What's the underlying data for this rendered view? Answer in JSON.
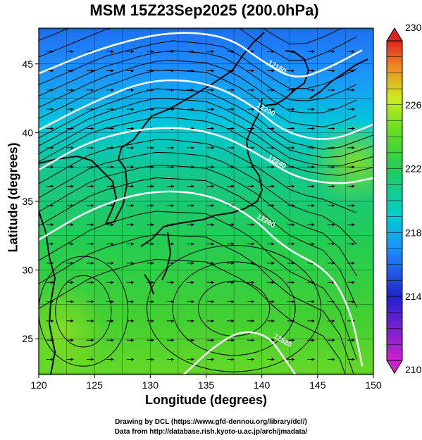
{
  "title": "MSM 15Z23Sep2025 (200.0hPa)",
  "chart_data": {
    "type": "heatmap",
    "xlabel": "Longitude (degrees)",
    "ylabel": "Latitude  (degrees)",
    "xlim": [
      120,
      150
    ],
    "ylim": [
      22.4,
      47.6
    ],
    "xticks": [
      "120",
      "125",
      "130",
      "135",
      "140",
      "145",
      "150"
    ],
    "yticks": [
      "25",
      "30",
      "35",
      "40",
      "45"
    ],
    "grid": true,
    "colorbar": {
      "min": 210,
      "max": 230,
      "ticks": [
        "210",
        "214",
        "218",
        "222",
        "226",
        "230"
      ],
      "placement": "right",
      "colors": [
        "#cc22cc",
        "#2222cc",
        "#1e90ff",
        "#00cfd0",
        "#22cc55",
        "#66dd22",
        "#ccee22",
        "#ee8822",
        "#dd2222"
      ]
    },
    "contours": [
      {
        "label": "12160",
        "points": [
          [
            120,
            44.3
          ],
          [
            126,
            46.3
          ],
          [
            132,
            47.4
          ],
          [
            137,
            47.0
          ],
          [
            140,
            45.2
          ],
          [
            143,
            43.8
          ],
          [
            146,
            44.7
          ],
          [
            149,
            46.0
          ]
        ]
      },
      {
        "label": "12200",
        "points": [
          [
            120,
            40.2
          ],
          [
            125,
            42.3
          ],
          [
            130,
            43.9
          ],
          [
            135,
            43.7
          ],
          [
            139,
            42.1
          ],
          [
            142,
            40.0
          ],
          [
            146,
            39.3
          ],
          [
            150,
            40.6
          ]
        ]
      },
      {
        "label": "12240",
        "points": [
          [
            120,
            37.3
          ],
          [
            125,
            39.6
          ],
          [
            131,
            40.5
          ],
          [
            136,
            40.0
          ],
          [
            140,
            38.3
          ],
          [
            143,
            36.7
          ],
          [
            147,
            36.2
          ],
          [
            150,
            36.7
          ]
        ]
      },
      {
        "label": "12280",
        "points": [
          [
            120,
            32.2
          ],
          [
            125,
            34.6
          ],
          [
            130,
            35.8
          ],
          [
            135,
            35.6
          ],
          [
            139,
            34.0
          ],
          [
            142,
            31.6
          ],
          [
            146,
            30.0
          ],
          [
            148,
            27.0
          ],
          [
            149,
            23.0
          ]
        ]
      },
      {
        "label": "12520",
        "points": [
          [
            133,
            22.4
          ],
          [
            135.5,
            24.3
          ],
          [
            138,
            25.6
          ],
          [
            140.5,
            25.3
          ],
          [
            142,
            23.6
          ],
          [
            143,
            22.4
          ]
        ]
      }
    ]
  },
  "credit1": "Drawing by DCL (https://www.gfd-dennou.org/library/dcl/)",
  "credit2": "Data from http://database.rish.kyoto-u.ac.jp/arch/jmadata/"
}
